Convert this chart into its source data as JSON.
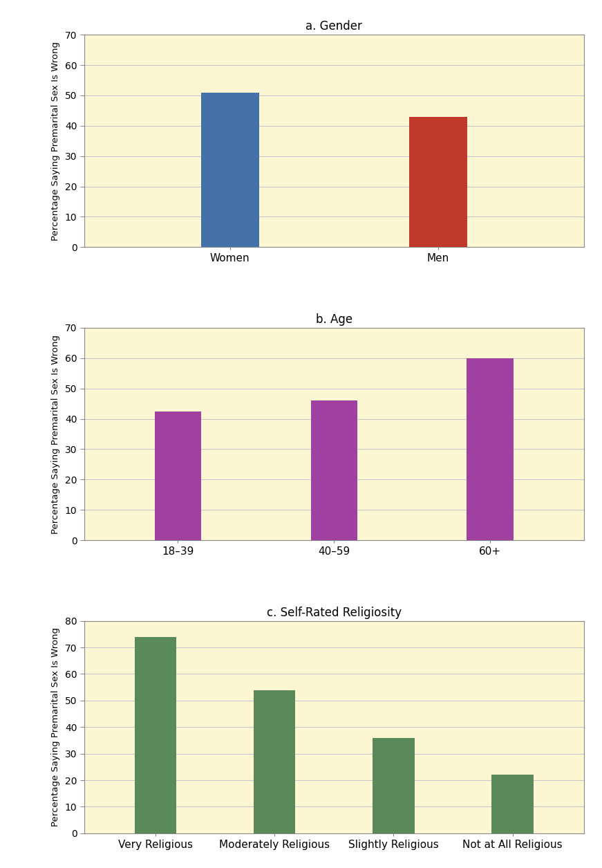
{
  "chart_a": {
    "title": "a. Gender",
    "categories": [
      "Women",
      "Men"
    ],
    "values": [
      51,
      43
    ],
    "colors": [
      "#4472a8",
      "#c0392b"
    ],
    "ylim": [
      0,
      70
    ],
    "yticks": [
      0,
      10,
      20,
      30,
      40,
      50,
      60,
      70
    ]
  },
  "chart_b": {
    "title": "b. Age",
    "categories": [
      "18–39",
      "40–59",
      "60+"
    ],
    "values": [
      42.5,
      46,
      60
    ],
    "colors": [
      "#a040a0",
      "#a040a0",
      "#a040a0"
    ],
    "ylim": [
      0,
      70
    ],
    "yticks": [
      0,
      10,
      20,
      30,
      40,
      50,
      60,
      70
    ]
  },
  "chart_c": {
    "title": "c. Self-Rated Religiosity",
    "categories": [
      "Very Religious",
      "Moderately Religious",
      "Slightly Religious",
      "Not at All Religious"
    ],
    "values": [
      74,
      54,
      36,
      22
    ],
    "colors": [
      "#5a8a5a",
      "#5a8a5a",
      "#5a8a5a",
      "#5a8a5a"
    ],
    "ylim": [
      0,
      80
    ],
    "yticks": [
      0,
      10,
      20,
      30,
      40,
      50,
      60,
      70,
      80
    ]
  },
  "ylabel": "Percentage Saying Premarital Sex Is Wrong",
  "bg_color": "#fdf6d3",
  "grid_color": "#c8c8c8",
  "figure_bg": "#ffffff",
  "spine_color": "#888888"
}
